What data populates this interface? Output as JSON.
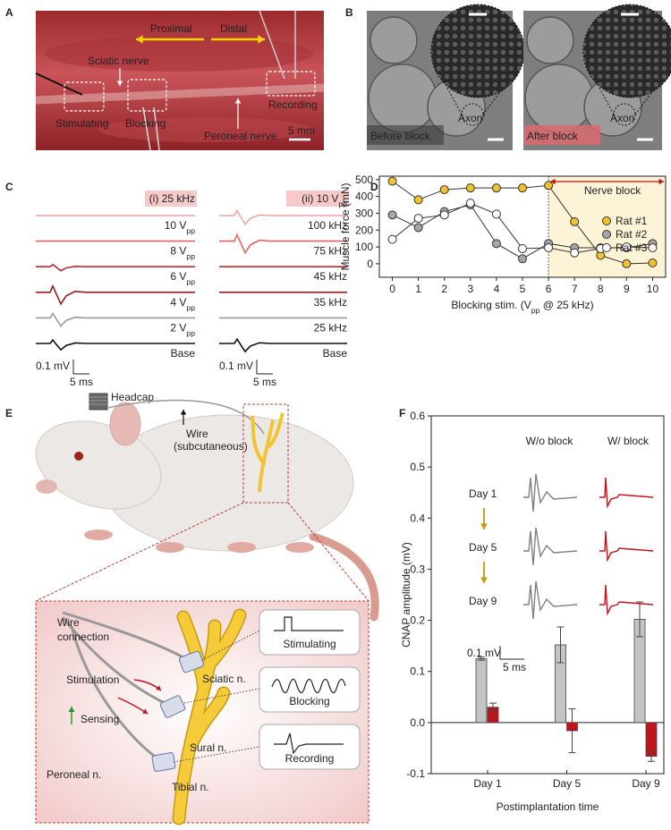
{
  "panel_labels": [
    "A",
    "B",
    "C",
    "D",
    "E",
    "F"
  ],
  "panel_a": {
    "proximal": "Proximal",
    "distal": "Distal",
    "sciatic": "Sciatic nerve",
    "stimulating": "Stimulating",
    "blocking": "Blocking",
    "recording": "Recording",
    "peroneal": "Peroneal nerve",
    "scale": "5 mm"
  },
  "panel_b": {
    "images": [
      {
        "caption": "Before block",
        "label": "Axon"
      },
      {
        "caption": "After block",
        "label": "Axon"
      }
    ]
  },
  "panel_c": {
    "groups": [
      {
        "header": {
          "text": "(i) 25 kHz"
        },
        "rows": [
          {
            "text": "10 V",
            "sub": "pp",
            "color": "#f0a3a3"
          },
          {
            "text": "8 V",
            "sub": "pp",
            "color": "#e06464"
          },
          {
            "text": "6 V",
            "sub": "pp",
            "color": "#c4282e"
          },
          {
            "text": "4 V",
            "sub": "pp",
            "color": "#981c22"
          },
          {
            "text": "2 V",
            "sub": "pp",
            "color": "#9a9a9a"
          },
          {
            "text": "Base",
            "color": "#111111"
          }
        ]
      },
      {
        "header": {
          "text": "(ii) 10 V",
          "sub": "pp"
        },
        "rows": [
          {
            "text": "100 kHz",
            "color": "#f0a3a3"
          },
          {
            "text": "75 kHz",
            "color": "#e06464"
          },
          {
            "text": "45 kHz",
            "color": "#c4282e"
          },
          {
            "text": "35 kHz",
            "color": "#981c22"
          },
          {
            "text": "25 kHz",
            "color": "#9a9a9a"
          },
          {
            "text": "Base",
            "color": "#111111"
          }
        ]
      }
    ],
    "scale": {
      "voltage": "0.1 mV",
      "time": "5 ms"
    }
  },
  "panel_e": {
    "headcap": "Headcap",
    "wire": [
      "Wire",
      "(subcutaneous)"
    ],
    "wire_connection": [
      "Wire",
      "connection"
    ],
    "stimulation": "Stimulation",
    "sensing": "Sensing",
    "sciatic": "Sciatic n.",
    "sural": "Sural n.",
    "peroneal": "Peroneal n.",
    "tibial": "Tibial n.",
    "modes": [
      "Stimulating",
      "Blocking",
      "Recording"
    ]
  },
  "chart_data": [
    {
      "type": "line",
      "ylabel": "Muscle force (mN)",
      "xlabel": {
        "text": "Blocking stim. (V",
        "sub": "pp",
        "tail": " @ 25 kHz)"
      },
      "x": [
        0,
        1,
        2,
        3,
        4,
        5,
        6,
        7,
        8,
        9,
        10
      ],
      "xlim": [
        -0.5,
        10.5
      ],
      "xticks": [
        0,
        1,
        2,
        3,
        4,
        5,
        6,
        7,
        8,
        9,
        10
      ],
      "ylim": [
        -80,
        520
      ],
      "yticks": [
        0,
        100,
        200,
        300,
        400,
        500
      ],
      "legend": "center right",
      "annotation": {
        "text": "Nerve block",
        "x": 6,
        "color": "#c0141c",
        "shade": "#fdf3d6"
      },
      "series": [
        {
          "name": "Rat #1",
          "color": "#f2c12e",
          "values": [
            490,
            380,
            440,
            450,
            450,
            450,
            465,
            250,
            50,
            0,
            5
          ]
        },
        {
          "name": "Rat #2",
          "color": "#a6a6a6",
          "values": [
            290,
            215,
            310,
            350,
            120,
            30,
            120,
            95,
            95,
            95,
            120
          ]
        },
        {
          "name": "Rat #3",
          "color": "#ffffff",
          "values": [
            145,
            270,
            290,
            360,
            295,
            90,
            95,
            65,
            90,
            100,
            95
          ]
        }
      ]
    },
    {
      "type": "bar",
      "ylabel": "CNAP amplitude (mV)",
      "xlabel": "Postimplantation time",
      "categories": [
        "Day 1",
        "Day 5",
        "Day 9"
      ],
      "ylim": [
        -0.1,
        0.6
      ],
      "yticks": [
        -0.1,
        {
          "value": 0,
          "label": "0.0"
        },
        0.1,
        0.2,
        0.3,
        0.4,
        0.5,
        0.6
      ],
      "series": [
        {
          "name": "W/o block",
          "color": "#c4c4c4",
          "values": [
            0.125,
            0.152,
            0.202
          ],
          "errors": [
            0.003,
            0.035,
            0.034
          ]
        },
        {
          "name": "W/ block",
          "color": "#c0141c",
          "values": [
            0.03,
            -0.016,
            -0.066
          ],
          "errors": [
            0.008,
            0.043,
            0.01
          ]
        }
      ],
      "inset_scale": {
        "voltage": "0.1 mV",
        "time": "5 ms"
      }
    }
  ]
}
